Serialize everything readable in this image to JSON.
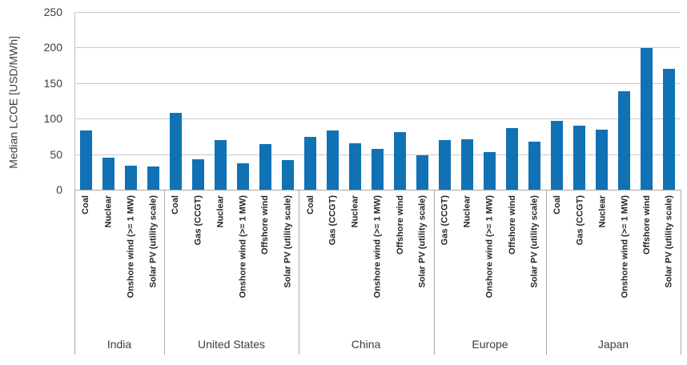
{
  "chart_data": {
    "type": "bar",
    "title": "",
    "xlabel": "",
    "ylabel": "Median LCOE [USD/MWh]",
    "ylim": [
      0,
      250
    ],
    "yticks": [
      0,
      50,
      100,
      150,
      200,
      250
    ],
    "grid": "horizontal",
    "legend": "none",
    "bar_color": "#1072b4",
    "groups": [
      {
        "name": "India",
        "categories": [
          "Coal",
          "Nuclear",
          "Onshore wind (>= 1 MW)",
          "Solar PV (utility scale)"
        ],
        "values": [
          83,
          45,
          34,
          33
        ]
      },
      {
        "name": "United States",
        "categories": [
          "Coal",
          "Gas (CCGT)",
          "Nuclear",
          "Onshore wind (>= 1 MW)",
          "Offshore wind",
          "Solar PV (utility scale)"
        ],
        "values": [
          108,
          43,
          70,
          37,
          64,
          42
        ]
      },
      {
        "name": "China",
        "categories": [
          "Coal",
          "Gas (CCGT)",
          "Nuclear",
          "Onshore wind (>= 1 MW)",
          "Offshore wind",
          "Solar PV (utility scale)"
        ],
        "values": [
          74,
          83,
          65,
          57,
          81,
          48
        ]
      },
      {
        "name": "Europe",
        "categories": [
          "Gas (CCGT)",
          "Nuclear",
          "Onshore wind (>= 1 MW)",
          "Offshore wind",
          "Solar PV (utility scale)"
        ],
        "values": [
          70,
          71,
          53,
          87,
          68
        ]
      },
      {
        "name": "Japan",
        "categories": [
          "Coal",
          "Gas (CCGT)",
          "Nuclear",
          "Onshore wind (>= 1 MW)",
          "Offshore wind",
          "Solar PV (utility scale)"
        ],
        "values": [
          97,
          90,
          84,
          138,
          199,
          170
        ]
      }
    ]
  },
  "colors": {
    "bar": "#1072b4",
    "gridline": "#c9c9c9",
    "axis_line": "#a6a6a6",
    "separator": "#a9a9a9",
    "tick_text": "#3d3d3d",
    "category_text": "#262626"
  }
}
